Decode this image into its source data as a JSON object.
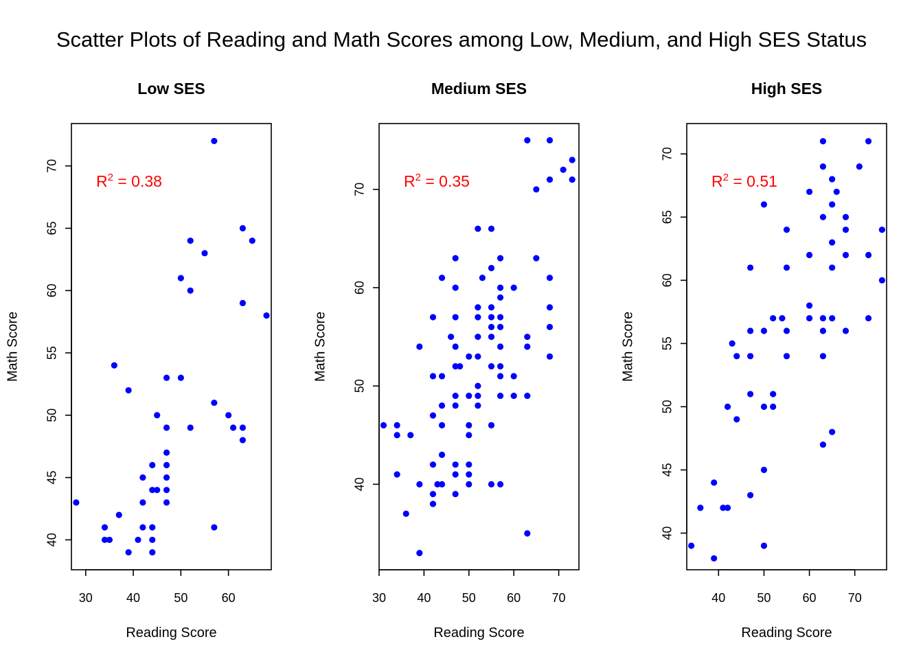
{
  "title": "Scatter Plots of Reading and Math Scores among Low, Medium, and High SES Status",
  "colors": {
    "points": "#0000ff",
    "annotation": "#ff0000",
    "axes": "#000000"
  },
  "chart_data": [
    {
      "type": "scatter",
      "title": "Low SES",
      "xlabel": "Reading Score",
      "ylabel": "Math Score",
      "xlim": [
        27,
        69
      ],
      "ylim": [
        37.6,
        73.4
      ],
      "xticks": [
        30,
        40,
        50,
        60
      ],
      "yticks": [
        40,
        45,
        50,
        55,
        60,
        65,
        70
      ],
      "annotation": {
        "label": "R",
        "sup": "2",
        "value": " = 0.38"
      },
      "points": [
        [
          57,
          72
        ],
        [
          52,
          64
        ],
        [
          63,
          65
        ],
        [
          65,
          64
        ],
        [
          55,
          63
        ],
        [
          50,
          61
        ],
        [
          52,
          60
        ],
        [
          63,
          59
        ],
        [
          68,
          58
        ],
        [
          36,
          54
        ],
        [
          47,
          53
        ],
        [
          50,
          53
        ],
        [
          39,
          52
        ],
        [
          57,
          51
        ],
        [
          60,
          50
        ],
        [
          45,
          50
        ],
        [
          52,
          49
        ],
        [
          47,
          49
        ],
        [
          61,
          49
        ],
        [
          63,
          49
        ],
        [
          63,
          48
        ],
        [
          47,
          47
        ],
        [
          47,
          46
        ],
        [
          44,
          46
        ],
        [
          42,
          45
        ],
        [
          47,
          45
        ],
        [
          44,
          44
        ],
        [
          45,
          44
        ],
        [
          47,
          44
        ],
        [
          42,
          43
        ],
        [
          47,
          43
        ],
        [
          28,
          43
        ],
        [
          37,
          42
        ],
        [
          57,
          41
        ],
        [
          34,
          41
        ],
        [
          42,
          41
        ],
        [
          44,
          41
        ],
        [
          34,
          40
        ],
        [
          35,
          40
        ],
        [
          41,
          40
        ],
        [
          44,
          40
        ],
        [
          39,
          39
        ],
        [
          44,
          39
        ]
      ]
    },
    {
      "type": "scatter",
      "title": "Medium SES",
      "xlabel": "Reading Score",
      "ylabel": "Math Score",
      "xlim": [
        30,
        74.5
      ],
      "ylim": [
        31.3,
        76.7
      ],
      "xticks": [
        30,
        40,
        50,
        60,
        70
      ],
      "yticks": [
        40,
        50,
        60,
        70
      ],
      "annotation": {
        "label": "R",
        "sup": "2",
        "value": " = 0.35"
      },
      "points": [
        [
          63,
          75
        ],
        [
          68,
          75
        ],
        [
          73,
          73
        ],
        [
          71,
          72
        ],
        [
          68,
          71
        ],
        [
          73,
          71
        ],
        [
          65,
          70
        ],
        [
          52,
          66
        ],
        [
          55,
          66
        ],
        [
          47,
          63
        ],
        [
          57,
          63
        ],
        [
          65,
          63
        ],
        [
          55,
          62
        ],
        [
          44,
          61
        ],
        [
          53,
          61
        ],
        [
          68,
          61
        ],
        [
          47,
          60
        ],
        [
          57,
          60
        ],
        [
          60,
          60
        ],
        [
          52,
          58
        ],
        [
          55,
          58
        ],
        [
          68,
          58
        ],
        [
          57,
          59
        ],
        [
          42,
          57
        ],
        [
          47,
          57
        ],
        [
          52,
          57
        ],
        [
          55,
          57
        ],
        [
          57,
          57
        ],
        [
          46,
          55
        ],
        [
          52,
          55
        ],
        [
          55,
          55
        ],
        [
          63,
          55
        ],
        [
          39,
          54
        ],
        [
          47,
          54
        ],
        [
          57,
          54
        ],
        [
          63,
          54
        ],
        [
          68,
          56
        ],
        [
          55,
          56
        ],
        [
          57,
          56
        ],
        [
          68,
          53
        ],
        [
          50,
          53
        ],
        [
          52,
          53
        ],
        [
          47,
          52
        ],
        [
          48,
          52
        ],
        [
          55,
          52
        ],
        [
          57,
          52
        ],
        [
          42,
          51
        ],
        [
          44,
          51
        ],
        [
          57,
          51
        ],
        [
          60,
          51
        ],
        [
          52,
          50
        ],
        [
          47,
          49
        ],
        [
          50,
          49
        ],
        [
          52,
          49
        ],
        [
          57,
          49
        ],
        [
          60,
          49
        ],
        [
          63,
          49
        ],
        [
          44,
          48
        ],
        [
          47,
          48
        ],
        [
          52,
          48
        ],
        [
          42,
          47
        ],
        [
          31,
          46
        ],
        [
          34,
          46
        ],
        [
          44,
          46
        ],
        [
          50,
          46
        ],
        [
          55,
          46
        ],
        [
          34,
          45
        ],
        [
          37,
          45
        ],
        [
          50,
          45
        ],
        [
          44,
          43
        ],
        [
          42,
          42
        ],
        [
          47,
          42
        ],
        [
          50,
          42
        ],
        [
          34,
          41
        ],
        [
          47,
          41
        ],
        [
          50,
          41
        ],
        [
          39,
          40
        ],
        [
          43,
          40
        ],
        [
          44,
          40
        ],
        [
          50,
          40
        ],
        [
          55,
          40
        ],
        [
          57,
          40
        ],
        [
          42,
          39
        ],
        [
          47,
          39
        ],
        [
          42,
          38
        ],
        [
          36,
          37
        ],
        [
          63,
          35
        ],
        [
          39,
          33
        ]
      ]
    },
    {
      "type": "scatter",
      "title": "High SES",
      "xlabel": "Reading Score",
      "ylabel": "Math Score",
      "xlim": [
        33,
        77
      ],
      "ylim": [
        37.1,
        72.4
      ],
      "xticks": [
        40,
        50,
        60,
        70
      ],
      "yticks": [
        40,
        45,
        50,
        55,
        60,
        65,
        70
      ],
      "annotation": {
        "label": "R",
        "sup": "2",
        "value": " = 0.51"
      },
      "points": [
        [
          63,
          71
        ],
        [
          73,
          71
        ],
        [
          63,
          69
        ],
        [
          71,
          69
        ],
        [
          65,
          68
        ],
        [
          66,
          67
        ],
        [
          60,
          67
        ],
        [
          50,
          66
        ],
        [
          65,
          66
        ],
        [
          63,
          65
        ],
        [
          68,
          65
        ],
        [
          55,
          64
        ],
        [
          68,
          64
        ],
        [
          76,
          64
        ],
        [
          65,
          63
        ],
        [
          60,
          62
        ],
        [
          68,
          62
        ],
        [
          73,
          62
        ],
        [
          47,
          61
        ],
        [
          55,
          61
        ],
        [
          65,
          61
        ],
        [
          76,
          60
        ],
        [
          60,
          58
        ],
        [
          52,
          57
        ],
        [
          54,
          57
        ],
        [
          60,
          57
        ],
        [
          63,
          57
        ],
        [
          65,
          57
        ],
        [
          73,
          57
        ],
        [
          47,
          56
        ],
        [
          50,
          56
        ],
        [
          55,
          56
        ],
        [
          63,
          56
        ],
        [
          68,
          56
        ],
        [
          43,
          55
        ],
        [
          44,
          54
        ],
        [
          47,
          54
        ],
        [
          55,
          54
        ],
        [
          63,
          54
        ],
        [
          47,
          51
        ],
        [
          52,
          51
        ],
        [
          42,
          50
        ],
        [
          50,
          50
        ],
        [
          52,
          50
        ],
        [
          44,
          49
        ],
        [
          65,
          48
        ],
        [
          63,
          47
        ],
        [
          50,
          45
        ],
        [
          39,
          44
        ],
        [
          47,
          43
        ],
        [
          36,
          42
        ],
        [
          41,
          42
        ],
        [
          42,
          42
        ],
        [
          34,
          39
        ],
        [
          50,
          39
        ],
        [
          39,
          38
        ]
      ]
    }
  ]
}
